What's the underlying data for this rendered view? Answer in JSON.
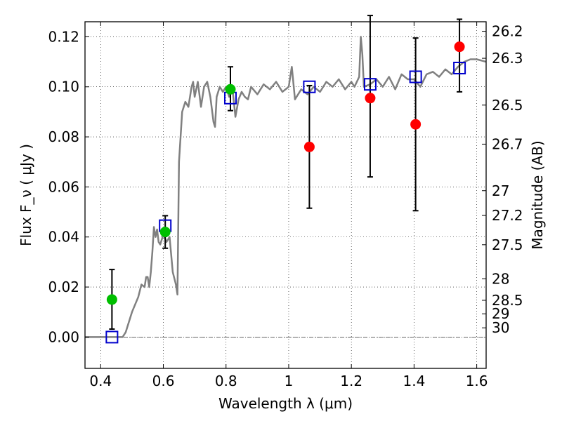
{
  "chart_data": {
    "type": "scatter",
    "xlabel": "Wavelength  λ (μm)",
    "ylabel": "Flux  F_ν  ( μJy )",
    "y2label": "Magnitude (AB)",
    "xlim": [
      0.35,
      1.63
    ],
    "ylim": [
      -0.0125,
      0.126
    ],
    "grid": true,
    "x_ticks": [
      0.4,
      0.6,
      0.8,
      1.0,
      1.2,
      1.4,
      1.6
    ],
    "x_tick_labels": [
      "0.4",
      "0.6",
      "0.8",
      "1",
      "1.2",
      "1.4",
      "1.6"
    ],
    "y_ticks": [
      0.0,
      0.02,
      0.04,
      0.06,
      0.08,
      0.1,
      0.12
    ],
    "y_tick_labels": [
      "0.00",
      "0.02",
      "0.04",
      "0.06",
      "0.08",
      "0.10",
      "0.12"
    ],
    "mag_ticks": [
      {
        "label": "26.2",
        "flux": 0.1222
      },
      {
        "label": "26.3",
        "flux": 0.1114
      },
      {
        "label": "26.5",
        "flux": 0.0927
      },
      {
        "label": "26.7",
        "flux": 0.0771
      },
      {
        "label": "27",
        "flux": 0.0585
      },
      {
        "label": "27.2",
        "flux": 0.0486
      },
      {
        "label": "27.5",
        "flux": 0.0369
      },
      {
        "label": "28",
        "flux": 0.0233
      },
      {
        "label": "28.5",
        "flux": 0.0147
      },
      {
        "label": "29",
        "flux": 0.0093
      },
      {
        "label": "30",
        "flux": 0.0037
      }
    ],
    "series": [
      {
        "name": "model spectrum",
        "kind": "line",
        "color": "#808080",
        "points": [
          [
            0.35,
            0.0
          ],
          [
            0.47,
            0.0
          ],
          [
            0.48,
            0.002
          ],
          [
            0.5,
            0.01
          ],
          [
            0.52,
            0.016
          ],
          [
            0.53,
            0.021
          ],
          [
            0.54,
            0.02
          ],
          [
            0.545,
            0.024
          ],
          [
            0.55,
            0.024
          ],
          [
            0.555,
            0.02
          ],
          [
            0.56,
            0.026
          ],
          [
            0.565,
            0.034
          ],
          [
            0.57,
            0.044
          ],
          [
            0.575,
            0.04
          ],
          [
            0.58,
            0.043
          ],
          [
            0.585,
            0.038
          ],
          [
            0.59,
            0.037
          ],
          [
            0.6,
            0.041
          ],
          [
            0.61,
            0.038
          ],
          [
            0.62,
            0.04
          ],
          [
            0.63,
            0.026
          ],
          [
            0.64,
            0.021
          ],
          [
            0.645,
            0.017
          ],
          [
            0.65,
            0.07
          ],
          [
            0.66,
            0.09
          ],
          [
            0.67,
            0.094
          ],
          [
            0.68,
            0.092
          ],
          [
            0.69,
            0.1
          ],
          [
            0.695,
            0.102
          ],
          [
            0.7,
            0.096
          ],
          [
            0.71,
            0.102
          ],
          [
            0.72,
            0.092
          ],
          [
            0.73,
            0.1
          ],
          [
            0.74,
            0.102
          ],
          [
            0.75,
            0.096
          ],
          [
            0.76,
            0.086
          ],
          [
            0.765,
            0.084
          ],
          [
            0.77,
            0.096
          ],
          [
            0.78,
            0.1
          ],
          [
            0.79,
            0.098
          ],
          [
            0.8,
            0.1
          ],
          [
            0.81,
            0.096
          ],
          [
            0.82,
            0.1
          ],
          [
            0.83,
            0.088
          ],
          [
            0.84,
            0.095
          ],
          [
            0.85,
            0.098
          ],
          [
            0.86,
            0.096
          ],
          [
            0.87,
            0.095
          ],
          [
            0.88,
            0.1
          ],
          [
            0.9,
            0.097
          ],
          [
            0.92,
            0.101
          ],
          [
            0.94,
            0.099
          ],
          [
            0.96,
            0.102
          ],
          [
            0.98,
            0.098
          ],
          [
            1.0,
            0.1
          ],
          [
            1.01,
            0.108
          ],
          [
            1.02,
            0.095
          ],
          [
            1.04,
            0.099
          ],
          [
            1.06,
            0.097
          ],
          [
            1.08,
            0.1
          ],
          [
            1.1,
            0.098
          ],
          [
            1.12,
            0.102
          ],
          [
            1.14,
            0.1
          ],
          [
            1.16,
            0.103
          ],
          [
            1.18,
            0.099
          ],
          [
            1.2,
            0.102
          ],
          [
            1.21,
            0.1
          ],
          [
            1.225,
            0.104
          ],
          [
            1.23,
            0.12
          ],
          [
            1.235,
            0.113
          ],
          [
            1.24,
            0.1
          ],
          [
            1.26,
            0.101
          ],
          [
            1.28,
            0.103
          ],
          [
            1.3,
            0.1
          ],
          [
            1.32,
            0.104
          ],
          [
            1.34,
            0.099
          ],
          [
            1.36,
            0.105
          ],
          [
            1.38,
            0.103
          ],
          [
            1.4,
            0.103
          ],
          [
            1.42,
            0.1
          ],
          [
            1.44,
            0.105
          ],
          [
            1.46,
            0.106
          ],
          [
            1.48,
            0.104
          ],
          [
            1.5,
            0.107
          ],
          [
            1.52,
            0.105
          ],
          [
            1.54,
            0.108
          ],
          [
            1.56,
            0.11
          ],
          [
            1.58,
            0.111
          ],
          [
            1.6,
            0.111
          ],
          [
            1.63,
            0.11
          ]
        ]
      },
      {
        "name": "green points",
        "kind": "circle",
        "color": "#00bf00",
        "points": [
          {
            "x": 0.436,
            "y": 0.015,
            "err_lo": 0.0118,
            "err_hi": 0.012
          },
          {
            "x": 0.606,
            "y": 0.042,
            "err_lo": 0.0065,
            "err_hi": 0.0065
          },
          {
            "x": 0.814,
            "y": 0.099,
            "err_lo": 0.0085,
            "err_hi": 0.009
          }
        ]
      },
      {
        "name": "red points",
        "kind": "circle",
        "color": "#ff0000",
        "points": [
          {
            "x": 1.066,
            "y": 0.076,
            "err_lo": 0.0245,
            "err_hi": 0.0245
          },
          {
            "x": 1.26,
            "y": 0.0955,
            "err_lo": 0.0315,
            "err_hi": 0.033
          },
          {
            "x": 1.405,
            "y": 0.085,
            "err_lo": 0.0345,
            "err_hi": 0.0345
          },
          {
            "x": 1.545,
            "y": 0.116,
            "err_lo": 0.018,
            "err_hi": 0.011
          }
        ]
      },
      {
        "name": "model bands",
        "kind": "square",
        "color": "#0000cc",
        "points": [
          {
            "x": 0.436,
            "y": 0.0
          },
          {
            "x": 0.606,
            "y": 0.0445
          },
          {
            "x": 0.814,
            "y": 0.0955
          },
          {
            "x": 1.066,
            "y": 0.1
          },
          {
            "x": 1.26,
            "y": 0.101
          },
          {
            "x": 1.405,
            "y": 0.104
          },
          {
            "x": 1.545,
            "y": 0.1075
          }
        ]
      }
    ]
  }
}
